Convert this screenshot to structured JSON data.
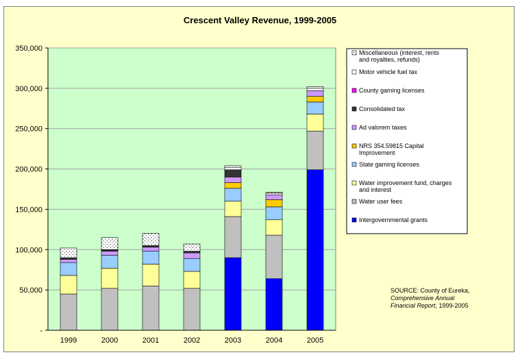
{
  "chart_data": {
    "type": "bar",
    "stacked": true,
    "title": "Crescent Valley Revenue, 1999-2005",
    "categories": [
      "1999",
      "2000",
      "2001",
      "2002",
      "2003",
      "2004",
      "2005"
    ],
    "ylim": [
      0,
      350000
    ],
    "yticks": [
      "-",
      "50,000",
      "100,000",
      "150,000",
      "200,000",
      "250,000",
      "300,000",
      "350,000"
    ],
    "grid": true,
    "legend_position": "right",
    "series": [
      {
        "name": "Intergovernmental grants",
        "color": "#0000ff",
        "values": [
          0,
          0,
          0,
          0,
          90000,
          64000,
          199000
        ]
      },
      {
        "name": "Water user fees",
        "color": "#c0c0c0",
        "values": [
          45000,
          52000,
          55000,
          52000,
          51000,
          54000,
          48000
        ]
      },
      {
        "name": "Water improvement fund, charges and interest",
        "color": "#ffff99",
        "values": [
          23000,
          25000,
          27000,
          21000,
          19000,
          19000,
          21000
        ]
      },
      {
        "name": "State gaming licenses",
        "color": "#99ccff",
        "values": [
          16000,
          16000,
          16000,
          16000,
          16000,
          16000,
          15000
        ]
      },
      {
        "name": "NRS 354.59815 Capital Improvement",
        "color": "#ffcc00",
        "values": [
          0,
          0,
          0,
          0,
          7000,
          9000,
          7000
        ]
      },
      {
        "name": "Ad valorem taxes",
        "color": "#cc99ff",
        "values": [
          4000,
          5000,
          5000,
          7000,
          7000,
          6000,
          7000
        ]
      },
      {
        "name": "Consolidated tax",
        "color": "#333333",
        "values": [
          2000,
          2000,
          2000,
          2000,
          9000,
          0,
          0
        ]
      },
      {
        "name": "County gaming licenses",
        "color": "#ff00ff",
        "values": [
          0,
          0,
          0,
          0,
          0,
          0,
          0
        ]
      },
      {
        "name": "Motor vehicle fuel tax",
        "color": "#ffffff",
        "values": [
          0,
          0,
          0,
          0,
          3000,
          2000,
          3000
        ]
      },
      {
        "name": "Miscellaneous (interest, rents and royalties, refunds)",
        "color": "#dotted",
        "values": [
          12000,
          15000,
          15000,
          9000,
          2000,
          1000,
          2000
        ]
      }
    ],
    "legend": [
      {
        "name": "Miscellaneous (interest, rents and royalties, refunds)",
        "swatch": "dotted"
      },
      {
        "name": "Motor vehicle fuel tax",
        "swatch": "#ffffff"
      },
      {
        "name": "County gaming licenses",
        "swatch": "#ff00ff"
      },
      {
        "name": "Consolidated tax",
        "swatch": "#333333"
      },
      {
        "name": "Ad valorem taxes",
        "swatch": "#cc99ff"
      },
      {
        "name": "NRS 354.59815 Capital Improvement",
        "swatch": "#ffcc00"
      },
      {
        "name": "State gaming licenses",
        "swatch": "#99ccff"
      },
      {
        "name": "Water improvement fund, charges and interest",
        "swatch": "#ffff99"
      },
      {
        "name": "Water user fees",
        "swatch": "#c0c0c0"
      },
      {
        "name": "Intergovernmental grants",
        "swatch": "#0000ff"
      }
    ]
  },
  "source": {
    "line1": "SOURCE: County of Eureka,",
    "line2": "Comprehensive Annual",
    "line3_italic": "Financial Report",
    "line3_rest": ", 1999-2005"
  }
}
